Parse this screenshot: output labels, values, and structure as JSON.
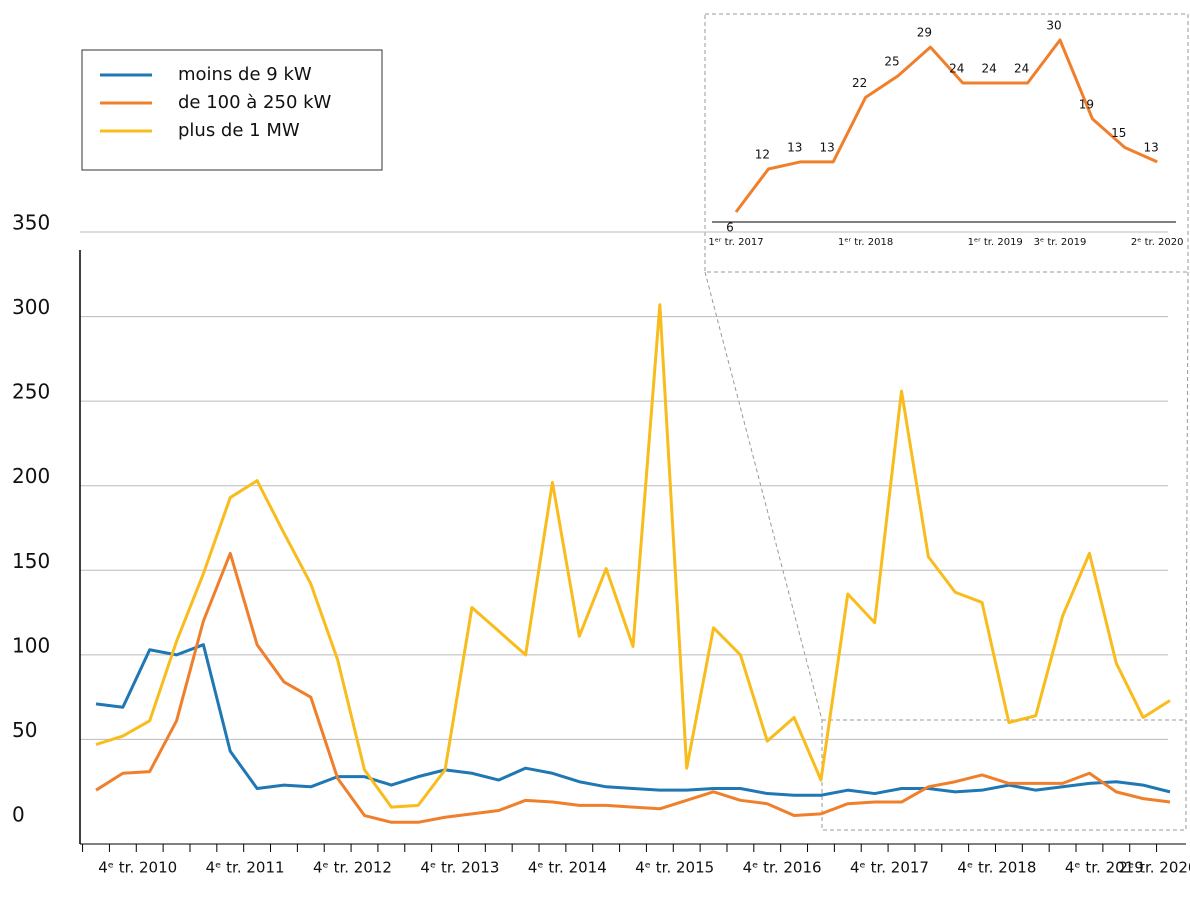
{
  "chart_data": [
    {
      "type": "line",
      "categories": [
        null,
        null,
        "4ᵉ tr. 2010",
        null,
        null,
        null,
        "4ᵉ tr. 2011",
        null,
        null,
        null,
        "4ᵉ tr. 2012",
        null,
        null,
        null,
        "4ᵉ tr. 2013",
        null,
        null,
        null,
        "4ᵉ tr. 2014",
        null,
        null,
        null,
        "4ᵉ tr. 2015",
        null,
        null,
        null,
        "4ᵉ tr. 2016",
        null,
        null,
        null,
        "4ᵉ tr. 2017",
        null,
        null,
        null,
        "4ᵉ tr. 2018",
        null,
        null,
        null,
        "4ᵉ tr. 2019",
        null,
        "2ᵉ tr. 2020"
      ],
      "series": [
        {
          "name": "moins de 9 kW",
          "color": "#1f77b4",
          "values": [
            71,
            69,
            103,
            100,
            106,
            43,
            21,
            23,
            22,
            28,
            28,
            23,
            28,
            32,
            30,
            26,
            33,
            30,
            25,
            22,
            21,
            20,
            20,
            21,
            21,
            18,
            17,
            17,
            20,
            18,
            21,
            21,
            19,
            20,
            23,
            20,
            22,
            24,
            25,
            23,
            19
          ]
        },
        {
          "name": "de 100 à 250 kW",
          "color": "#f07f2c",
          "values": [
            20,
            30,
            31,
            61,
            120,
            160,
            106,
            84,
            75,
            27,
            5,
            1,
            1,
            4,
            6,
            8,
            14,
            13,
            11,
            11,
            10,
            9,
            14,
            19,
            14,
            12,
            5,
            6,
            12,
            13,
            13,
            22,
            25,
            29,
            24,
            24,
            24,
            30,
            19,
            15,
            13
          ]
        },
        {
          "name": "plus de 1 MW",
          "color": "#f8bc1c",
          "values": [
            47,
            52,
            61,
            108,
            148,
            193,
            203,
            172,
            142,
            97,
            32,
            10,
            11,
            32,
            128,
            114,
            100,
            202,
            111,
            151,
            105,
            307,
            33,
            116,
            100,
            49,
            63,
            26,
            136,
            119,
            256,
            158,
            137,
            131,
            60,
            64,
            123,
            160,
            95,
            63,
            73
          ]
        }
      ],
      "ylim": [
        0,
        350
      ],
      "yticks": [
        0,
        50,
        100,
        150,
        200,
        250,
        300,
        350
      ],
      "grid": true,
      "legend": "top-left"
    },
    {
      "type": "line",
      "categories": [
        "1ᵉʳ tr. 2017",
        null,
        null,
        null,
        "1ᵉʳ tr. 2018",
        null,
        null,
        null,
        "1ᵉʳ tr. 2019",
        null,
        "3ᵉ tr. 2019",
        null,
        null,
        "2ᵉ tr. 2020"
      ],
      "series": [
        {
          "name": "de 100 à 250 kW",
          "color": "#f07f2c",
          "values": [
            6,
            12,
            13,
            13,
            22,
            25,
            29,
            24,
            24,
            24,
            30,
            19,
            15,
            13
          ]
        }
      ]
    }
  ]
}
